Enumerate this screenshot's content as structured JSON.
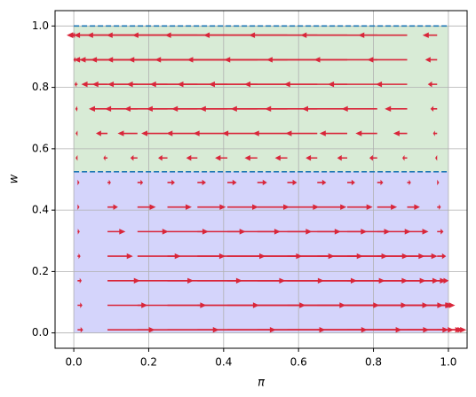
{
  "chart_data": {
    "type": "quiver",
    "xlabel": "π",
    "ylabel": "w",
    "xlim": [
      -0.05,
      1.05
    ],
    "ylim": [
      -0.05,
      1.05
    ],
    "xticks": [
      {
        "value": 0,
        "label": "0.0"
      },
      0.2,
      0.4,
      0.6,
      0.8,
      {
        "value": 1,
        "label": "1.0"
      }
    ],
    "yticks": [
      {
        "value": 0,
        "label": "0.0"
      },
      0.2,
      0.4,
      0.6,
      0.8,
      {
        "value": 1,
        "label": "1.0"
      }
    ],
    "grid": true,
    "bands": [
      {
        "from": 0,
        "to": 0.525,
        "span": [
          0,
          1
        ],
        "color": "#d4d4fb"
      },
      {
        "from": 0.525,
        "to": 1,
        "span": [
          0,
          1
        ],
        "color": "#d8ebd6"
      }
    ],
    "hlines": [
      0.525,
      1
    ],
    "hline_color": "#1f77b4",
    "color": "#d9263a",
    "x": [
      0.01,
      0.09,
      0.17,
      0.25,
      0.33,
      0.41,
      0.49,
      0.57,
      0.65,
      0.73,
      0.81,
      0.89,
      0.97
    ],
    "y": [
      0.01,
      0.09,
      0.17,
      0.25,
      0.33,
      0.41,
      0.49,
      0.57,
      0.65,
      0.73,
      0.81,
      0.89,
      0.97
    ],
    "u": [
      [
        0.015,
        0.127,
        0.218,
        0.29,
        0.342,
        0.374,
        0.386,
        0.379,
        0.351,
        0.305,
        0.238,
        0.151,
        0.045
      ],
      [
        0.013,
        0.107,
        0.184,
        0.245,
        0.289,
        0.316,
        0.326,
        0.32,
        0.297,
        0.257,
        0.201,
        0.128,
        0.038
      ],
      [
        0.011,
        0.087,
        0.15,
        0.2,
        0.235,
        0.258,
        0.266,
        0.261,
        0.242,
        0.21,
        0.164,
        0.104,
        0.031
      ],
      [
        0.008,
        0.068,
        0.116,
        0.155,
        0.182,
        0.2,
        0.206,
        0.202,
        0.188,
        0.163,
        0.127,
        0.081,
        0.024
      ],
      [
        0.006,
        0.048,
        0.083,
        0.11,
        0.129,
        0.142,
        0.146,
        0.143,
        0.133,
        0.115,
        0.09,
        0.057,
        0.017
      ],
      [
        0.003,
        0.028,
        0.049,
        0.065,
        0.076,
        0.083,
        0.086,
        0.085,
        0.078,
        0.068,
        0.053,
        0.034,
        0.01
      ],
      [
        0.001,
        0.009,
        0.015,
        0.02,
        0.023,
        0.025,
        0.026,
        0.026,
        0.024,
        0.021,
        0.016,
        0.01,
        0.003
      ],
      [
        -0.001,
        -0.011,
        -0.019,
        -0.025,
        -0.03,
        -0.033,
        -0.034,
        -0.033,
        -0.031,
        -0.027,
        -0.021,
        -0.013,
        -0.004
      ],
      [
        -0.004,
        -0.031,
        -0.053,
        -0.07,
        -0.083,
        -0.091,
        -0.094,
        -0.092,
        -0.085,
        -0.074,
        -0.058,
        -0.037,
        -0.011
      ],
      [
        -0.006,
        -0.05,
        -0.087,
        -0.115,
        -0.136,
        -0.149,
        -0.154,
        -0.151,
        -0.14,
        -0.121,
        -0.095,
        -0.06,
        -0.018
      ],
      [
        -0.008,
        -0.07,
        -0.121,
        -0.16,
        -0.189,
        -0.207,
        -0.214,
        -0.21,
        -0.195,
        -0.169,
        -0.132,
        -0.084,
        -0.025
      ],
      [
        -0.011,
        -0.09,
        -0.155,
        -0.205,
        -0.242,
        -0.265,
        -0.274,
        -0.268,
        -0.249,
        -0.216,
        -0.169,
        -0.107,
        -0.032
      ],
      [
        -0.013,
        -0.109,
        -0.188,
        -0.25,
        -0.295,
        -0.323,
        -0.334,
        -0.327,
        -0.304,
        -0.263,
        -0.205,
        -0.131,
        -0.039
      ]
    ]
  }
}
